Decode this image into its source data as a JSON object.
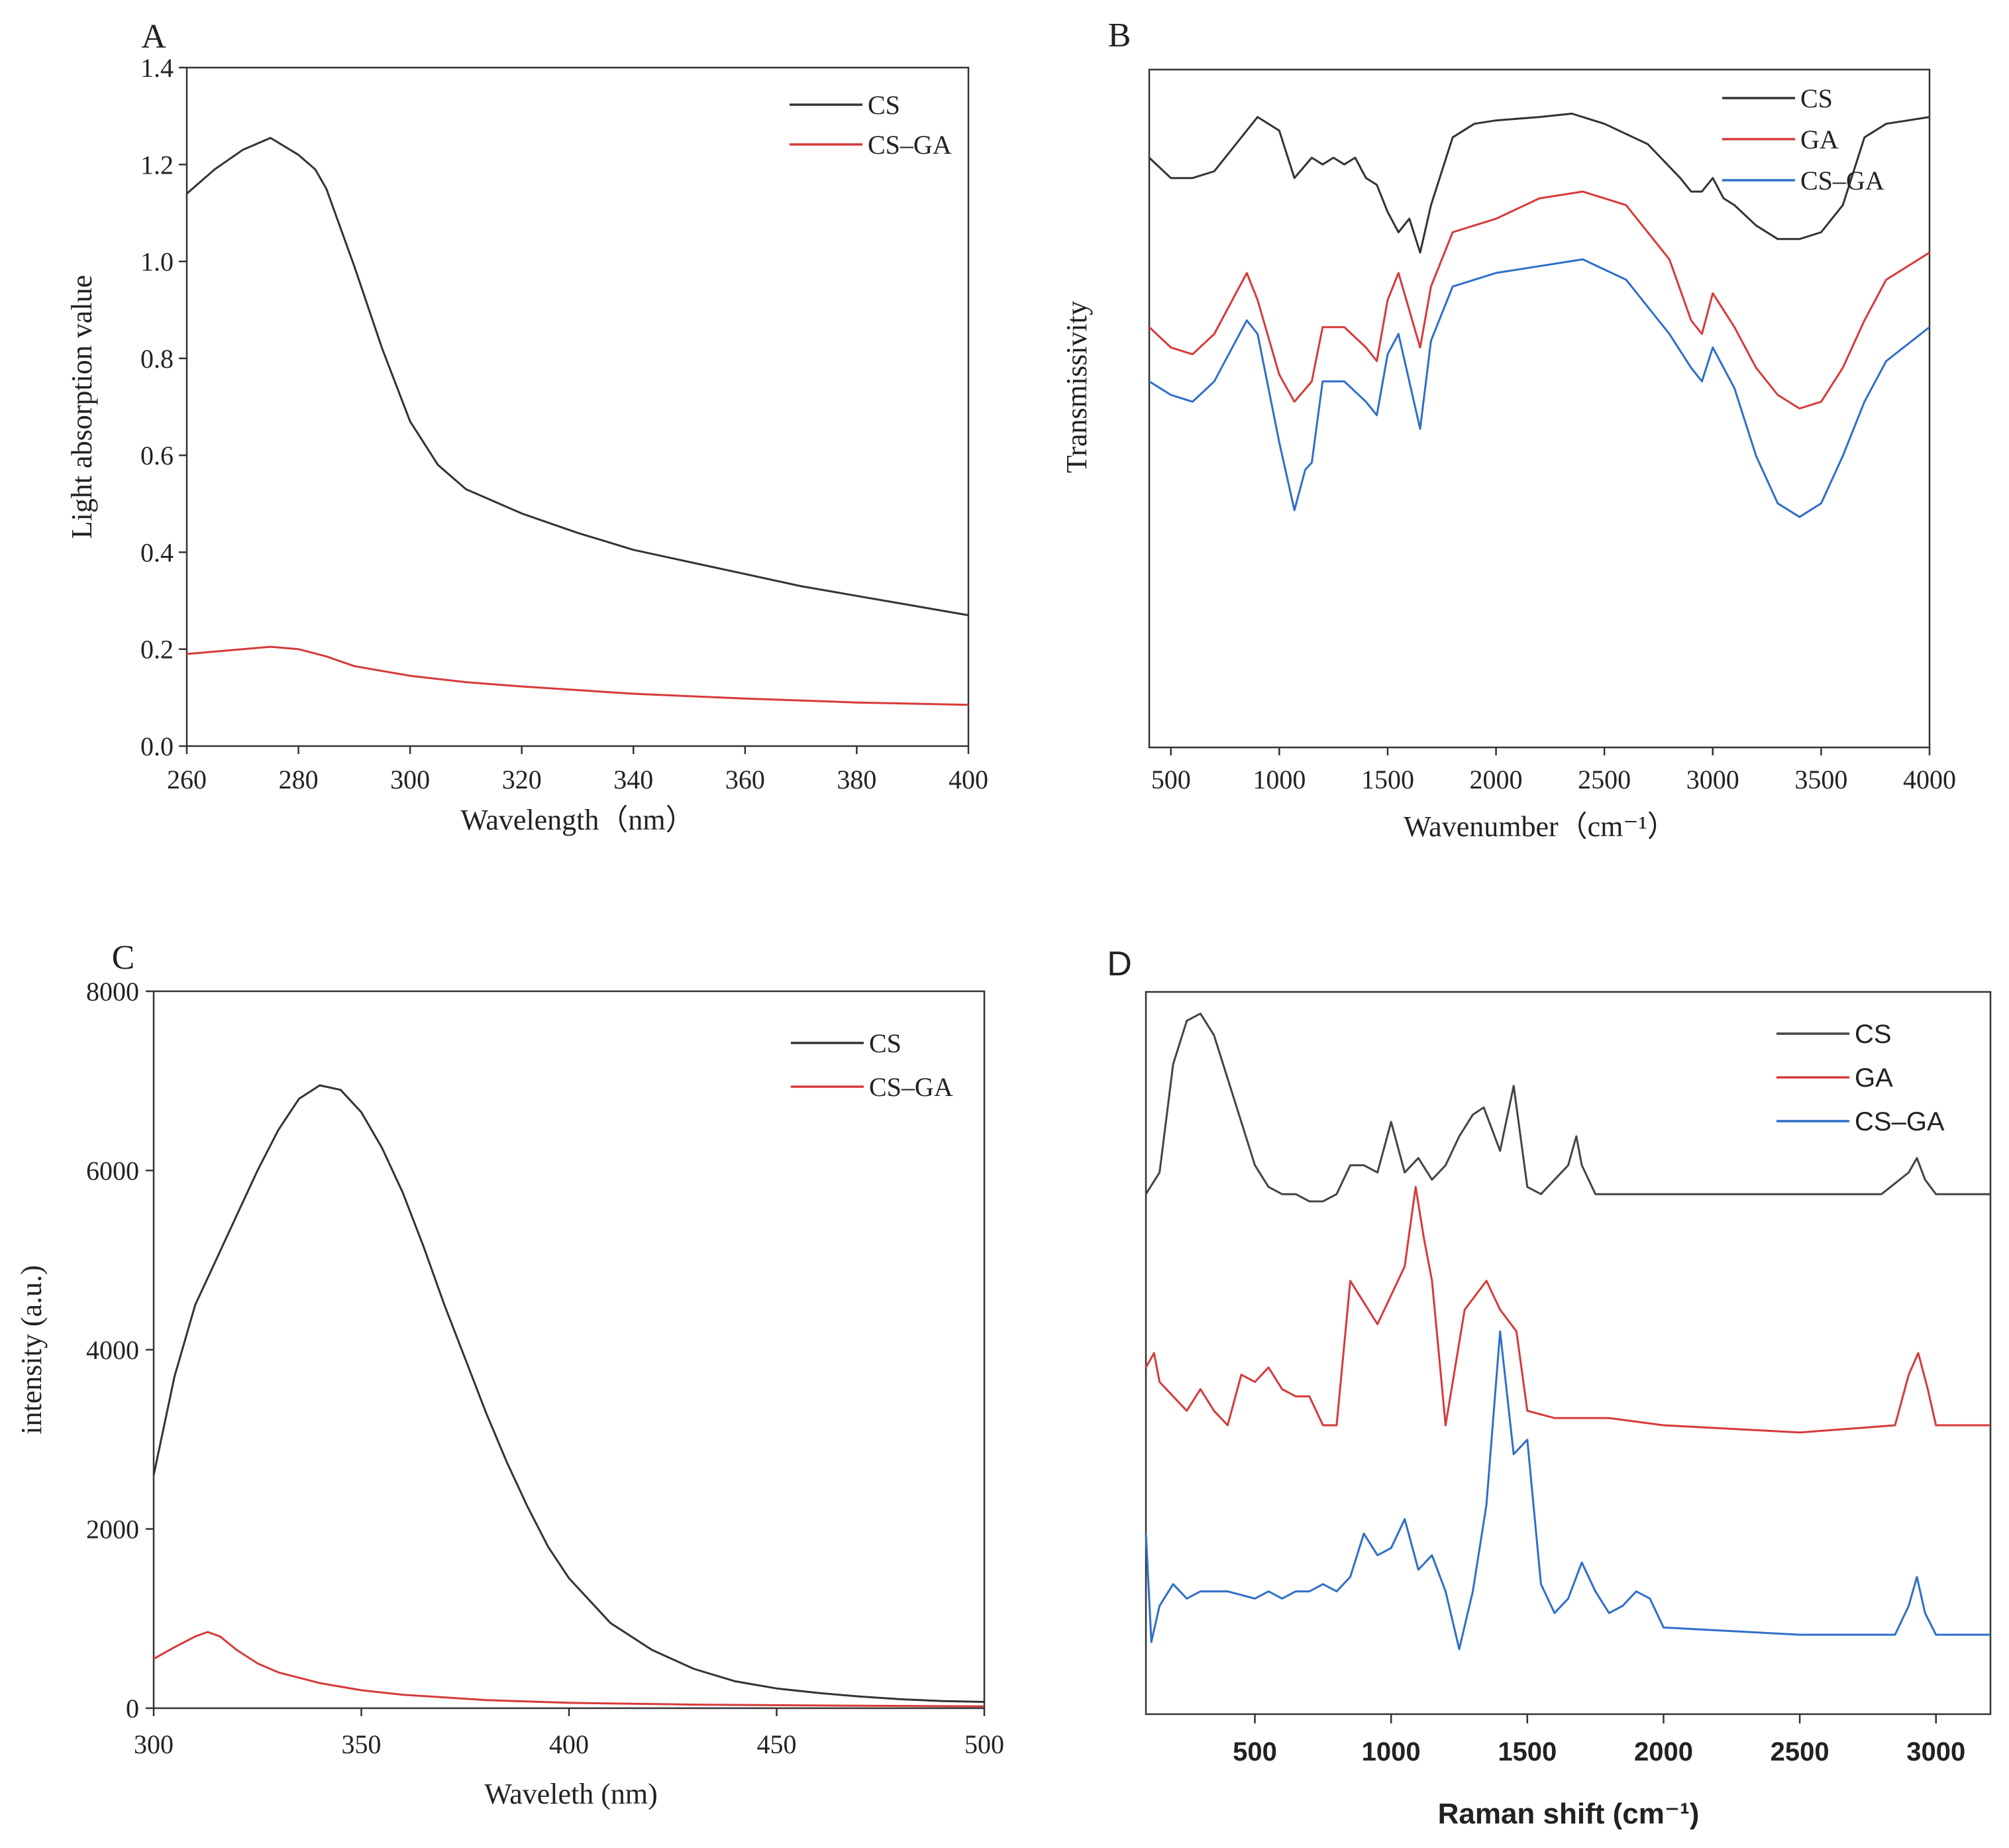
{
  "figure_title": "",
  "chart_data": [
    {
      "panel": "A",
      "type": "line",
      "title": "",
      "xlabel": "Wavelength（nm）",
      "ylabel": "Light absorption value",
      "xlim": [
        260,
        400
      ],
      "ylim": [
        0,
        1.4
      ],
      "xticks": [
        "260",
        "280",
        "300",
        "320",
        "340",
        "360",
        "380",
        "400"
      ],
      "yticks": [
        "0.0",
        "0.2",
        "0.4",
        "0.6",
        "0.8",
        "1.0",
        "1.2",
        "1.4"
      ],
      "legend": "top-right",
      "series": [
        {
          "name": "CS",
          "color": "#333333",
          "x": [
            260,
            265,
            270,
            275,
            280,
            283,
            285,
            290,
            295,
            300,
            305,
            310,
            320,
            330,
            340,
            350,
            360,
            370,
            380,
            390,
            400
          ],
          "y": [
            1.14,
            1.19,
            1.23,
            1.255,
            1.22,
            1.19,
            1.15,
            0.99,
            0.82,
            0.67,
            0.58,
            0.53,
            0.48,
            0.44,
            0.405,
            0.38,
            0.355,
            0.33,
            0.31,
            0.29,
            0.27
          ]
        },
        {
          "name": "CS–GA",
          "color": "#d63a3a",
          "x": [
            260,
            270,
            275,
            280,
            285,
            290,
            300,
            310,
            320,
            340,
            360,
            380,
            400
          ],
          "y": [
            0.19,
            0.2,
            0.205,
            0.2,
            0.185,
            0.165,
            0.145,
            0.132,
            0.123,
            0.108,
            0.098,
            0.09,
            0.085
          ]
        }
      ]
    },
    {
      "panel": "B",
      "type": "line",
      "title": "",
      "xlabel": "Wavenumber（cm⁻¹）",
      "ylabel": "Transmissivity",
      "xlim": [
        400,
        4000
      ],
      "ylim": [
        0,
        100
      ],
      "xticks": [
        "500",
        "1000",
        "1500",
        "2000",
        "2500",
        "3000",
        "3500",
        "4000"
      ],
      "yticks": [],
      "legend": "top-right",
      "series": [
        {
          "name": "CS",
          "color": "#333333",
          "x": [
            400,
            500,
            600,
            700,
            800,
            900,
            1000,
            1070,
            1150,
            1200,
            1250,
            1300,
            1350,
            1400,
            1450,
            1500,
            1550,
            1600,
            1650,
            1700,
            1800,
            1900,
            2000,
            2200,
            2350,
            2500,
            2700,
            2850,
            2900,
            2950,
            3000,
            3050,
            3100,
            3200,
            3300,
            3400,
            3500,
            3600,
            3700,
            3800,
            4000
          ],
          "y": [
            87,
            84,
            84,
            85,
            89,
            93,
            91,
            84,
            87,
            86,
            87,
            86,
            87,
            84,
            83,
            79,
            76,
            78,
            73,
            80,
            90,
            92,
            92.5,
            93,
            93.5,
            92,
            89,
            84,
            82,
            82,
            84,
            81,
            80,
            77,
            75,
            75,
            76,
            80,
            90,
            92,
            93
          ]
        },
        {
          "name": "GA",
          "color": "#d63a3a",
          "x": [
            400,
            500,
            600,
            700,
            800,
            850,
            900,
            1000,
            1070,
            1150,
            1200,
            1300,
            1400,
            1450,
            1500,
            1550,
            1650,
            1700,
            1800,
            2000,
            2200,
            2400,
            2600,
            2800,
            2900,
            2950,
            3000,
            3100,
            3200,
            3300,
            3400,
            3500,
            3600,
            3700,
            3800,
            4000
          ],
          "y": [
            62,
            59,
            58,
            61,
            67,
            70,
            66,
            55,
            51,
            54,
            62,
            62,
            59,
            57,
            66,
            70,
            59,
            68,
            76,
            78,
            81,
            82,
            80,
            72,
            63,
            61,
            67,
            62,
            56,
            52,
            50,
            51,
            56,
            63,
            69,
            73
          ]
        },
        {
          "name": "CS–GA",
          "color": "#2e6fc9",
          "x": [
            400,
            500,
            600,
            700,
            800,
            850,
            900,
            1000,
            1070,
            1120,
            1150,
            1200,
            1300,
            1400,
            1450,
            1500,
            1550,
            1650,
            1700,
            1800,
            2000,
            2200,
            2400,
            2600,
            2800,
            2900,
            2950,
            3000,
            3100,
            3200,
            3300,
            3400,
            3500,
            3600,
            3700,
            3800,
            4000
          ],
          "y": [
            54,
            52,
            51,
            54,
            60,
            63,
            61,
            45,
            35,
            41,
            42,
            54,
            54,
            51,
            49,
            58,
            61,
            47,
            60,
            68,
            70,
            71,
            72,
            69,
            61,
            56,
            54,
            59,
            53,
            43,
            36,
            34,
            36,
            43,
            51,
            57,
            62
          ]
        }
      ]
    },
    {
      "panel": "C",
      "type": "line",
      "title": "",
      "xlabel": "Waveleth (nm)",
      "ylabel": "intensity (a.u.)",
      "xlim": [
        300,
        500
      ],
      "ylim": [
        0,
        8000
      ],
      "xticks": [
        "300",
        "350",
        "400",
        "450",
        "500"
      ],
      "yticks": [
        "0",
        "2000",
        "4000",
        "6000",
        "8000"
      ],
      "legend": "top-right",
      "series": [
        {
          "name": "CS",
          "color": "#333333",
          "x": [
            300,
            305,
            310,
            315,
            320,
            325,
            330,
            335,
            340,
            345,
            350,
            355,
            360,
            365,
            370,
            375,
            380,
            385,
            390,
            395,
            400,
            410,
            420,
            430,
            440,
            450,
            460,
            470,
            480,
            490,
            500
          ],
          "y": [
            2600,
            3700,
            4500,
            5000,
            5500,
            6000,
            6450,
            6800,
            6950,
            6900,
            6650,
            6250,
            5750,
            5150,
            4500,
            3900,
            3300,
            2750,
            2250,
            1800,
            1450,
            950,
            650,
            440,
            300,
            220,
            170,
            130,
            100,
            80,
            70
          ]
        },
        {
          "name": "CS–GA",
          "color": "#d63a3a",
          "x": [
            300,
            305,
            310,
            313,
            316,
            320,
            325,
            330,
            340,
            350,
            360,
            380,
            400,
            430,
            460,
            500
          ],
          "y": [
            550,
            680,
            800,
            850,
            800,
            650,
            500,
            400,
            280,
            200,
            150,
            90,
            60,
            40,
            30,
            20
          ]
        }
      ]
    },
    {
      "panel": "D",
      "type": "line",
      "title": "",
      "xlabel": "Raman shift (cm⁻¹)",
      "ylabel": "",
      "xlim": [
        100,
        3200
      ],
      "ylim": [
        0,
        100
      ],
      "xticks": [
        "500",
        "1000",
        "1500",
        "2000",
        "2500",
        "3000"
      ],
      "yticks": [],
      "legend": "top-right",
      "series": [
        {
          "name": "CS",
          "color": "#444444",
          "x": [
            100,
            150,
            200,
            250,
            300,
            350,
            400,
            450,
            500,
            550,
            600,
            650,
            700,
            750,
            800,
            850,
            900,
            950,
            1000,
            1050,
            1100,
            1150,
            1200,
            1250,
            1300,
            1340,
            1400,
            1450,
            1500,
            1550,
            1600,
            1650,
            1680,
            1700,
            1750,
            1800,
            2000,
            2500,
            2800,
            2900,
            2930,
            2960,
            3000,
            3200
          ],
          "y": [
            72,
            75,
            90,
            96,
            97,
            94,
            88,
            82,
            76,
            73,
            72,
            72,
            71,
            71,
            72,
            76,
            76,
            75,
            82,
            75,
            77,
            74,
            76,
            80,
            83,
            84,
            78,
            87,
            73,
            72,
            74,
            76,
            80,
            76,
            72,
            72,
            72,
            72,
            72,
            75,
            77,
            74,
            72,
            72
          ]
        },
        {
          "name": "GA",
          "color": "#d63a3a",
          "x": [
            100,
            130,
            150,
            200,
            250,
            300,
            350,
            400,
            450,
            500,
            550,
            600,
            650,
            700,
            750,
            800,
            850,
            900,
            950,
            1000,
            1050,
            1090,
            1120,
            1150,
            1200,
            1270,
            1350,
            1400,
            1460,
            1500,
            1600,
            1800,
            2000,
            2500,
            2850,
            2900,
            2935,
            2970,
            3000,
            3200
          ],
          "y": [
            48,
            50,
            46,
            44,
            42,
            45,
            42,
            40,
            47,
            46,
            48,
            45,
            44,
            44,
            40,
            40,
            60,
            57,
            54,
            58,
            62,
            73,
            66,
            60,
            40,
            56,
            60,
            56,
            53,
            42,
            41,
            41,
            40,
            39,
            40,
            47,
            50,
            45,
            40,
            40
          ]
        },
        {
          "name": "CS–GA",
          "color": "#2e6fc9",
          "x": [
            100,
            120,
            150,
            200,
            250,
            300,
            400,
            500,
            550,
            600,
            650,
            700,
            750,
            800,
            850,
            900,
            950,
            1000,
            1050,
            1100,
            1150,
            1200,
            1250,
            1300,
            1350,
            1400,
            1450,
            1500,
            1550,
            1600,
            1650,
            1680,
            1700,
            1750,
            1800,
            1850,
            1900,
            1950,
            2000,
            2500,
            2850,
            2900,
            2930,
            2960,
            3000,
            3200
          ],
          "y": [
            25,
            10,
            15,
            18,
            16,
            17,
            17,
            16,
            17,
            16,
            17,
            17,
            18,
            17,
            19,
            25,
            22,
            23,
            27,
            20,
            22,
            17,
            9,
            17,
            29,
            53,
            36,
            38,
            18,
            14,
            16,
            19,
            21,
            17,
            14,
            15,
            17,
            16,
            12,
            11,
            11,
            15,
            19,
            14,
            11,
            11
          ]
        }
      ]
    }
  ]
}
